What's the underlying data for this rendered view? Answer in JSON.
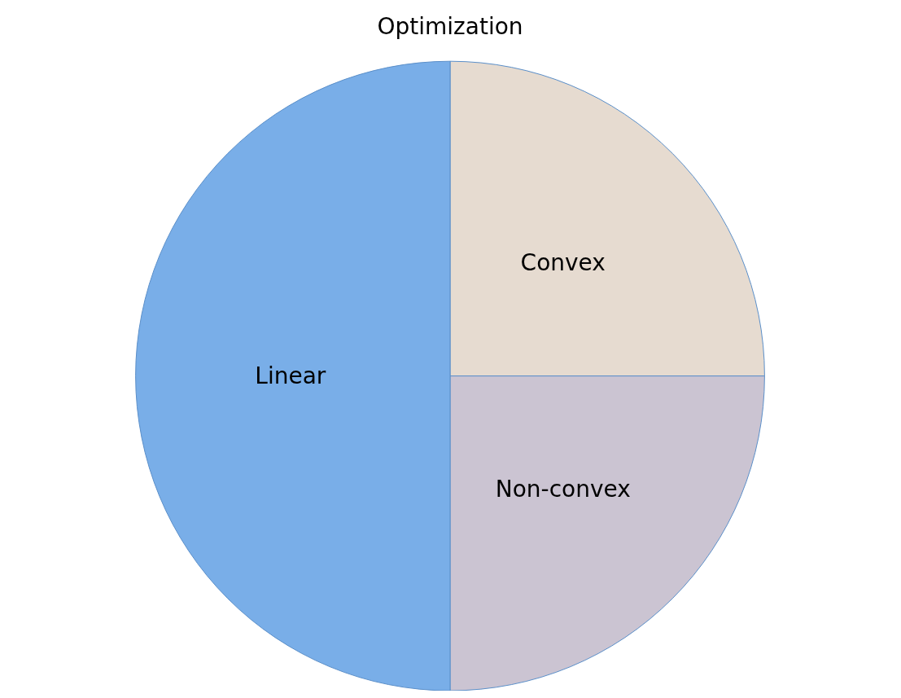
{
  "chart_data": {
    "type": "pie",
    "title": "Optimization",
    "categories": [
      "Convex",
      "Non-convex",
      "Linear"
    ],
    "values": [
      25,
      25,
      50
    ],
    "colors": [
      "#e6dbd0",
      "#cbc4d2",
      "#79aee8"
    ],
    "legend": false
  }
}
